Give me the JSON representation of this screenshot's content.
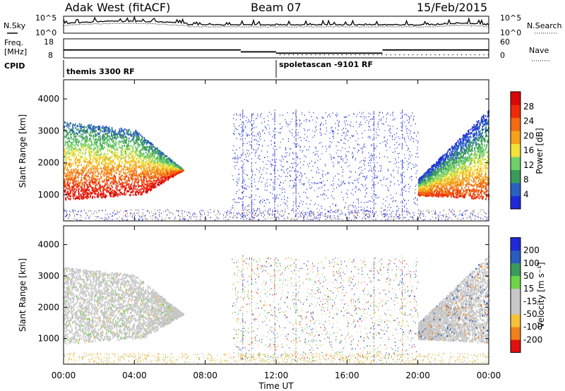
{
  "header": {
    "station": "Adak West (fitACF)",
    "beam": "Beam 07",
    "date": "15/Feb/2015"
  },
  "left_labels": {
    "nsky": "N.Sky",
    "freq_line1": "Freq.",
    "freq_line2": "[MHz]",
    "cpid": "CPID"
  },
  "right_labels": {
    "nsearch": "N.Search",
    "nave": "Nave"
  },
  "cpid_segments": [
    "themis 3300 RF",
    "spoletascan -9101 RF"
  ],
  "colors": {
    "power": [
      "#1e2ad8",
      "#2a60c0",
      "#3a9a5a",
      "#6fcf6a",
      "#f2e23a",
      "#f5a21a",
      "#f26a12",
      "#ee2a0a",
      "#d80808"
    ],
    "velocity": [
      "#e11010",
      "#f0801a",
      "#f5c23a",
      "#c8c8c8",
      "#c8c8c8",
      "#6fd44a",
      "#3a9a5a",
      "#2a5cc0",
      "#1e2ad8"
    ]
  },
  "chart_data": [
    {
      "name": "noise",
      "type": "line",
      "title": "N.Sky",
      "y_left_ticks": [
        "10^5",
        "10^0"
      ],
      "y_right_ticks": [
        "10^5",
        "10^0"
      ],
      "right_label": "N.Search"
    },
    {
      "name": "frequency",
      "type": "line",
      "xlim": [
        0,
        24
      ],
      "ylim": [
        8,
        18
      ],
      "y_left_ticks": [
        "18",
        "8"
      ],
      "y_right_ticks": [
        "60",
        "0"
      ],
      "steps": [
        {
          "start": 0,
          "end": 10,
          "value": 12.5
        },
        {
          "start": 10,
          "end": 12,
          "value": 11.5
        },
        {
          "start": 12,
          "end": 18,
          "value": 10.8
        },
        {
          "start": 18,
          "end": 24,
          "value": 12.5
        }
      ]
    },
    {
      "name": "power",
      "type": "heatmap",
      "xlabel": "",
      "ylabel": "Slant Range [km]",
      "ylim": [
        180,
        4600
      ],
      "yticks": [
        "4000",
        "3000",
        "2000",
        "1000"
      ],
      "colorbar_label": "Power [dB]",
      "colorbar_ticks": [
        "28",
        "24",
        "20",
        "16",
        "12",
        "8",
        "4"
      ]
    },
    {
      "name": "velocity",
      "type": "heatmap",
      "xlabel": "Time UT",
      "ylabel": "Slant Range [km]",
      "ylim": [
        180,
        4600
      ],
      "yticks": [
        "4000",
        "3000",
        "2000",
        "1000"
      ],
      "xticks": [
        "00:00",
        "04:00",
        "08:00",
        "12:00",
        "16:00",
        "20:00",
        "00:00"
      ],
      "colorbar_label": "Velocity [m s⁻¹]",
      "colorbar_ticks": [
        "200",
        "100",
        "50",
        "15",
        "-15",
        "-50",
        "-100",
        "-200"
      ]
    }
  ]
}
